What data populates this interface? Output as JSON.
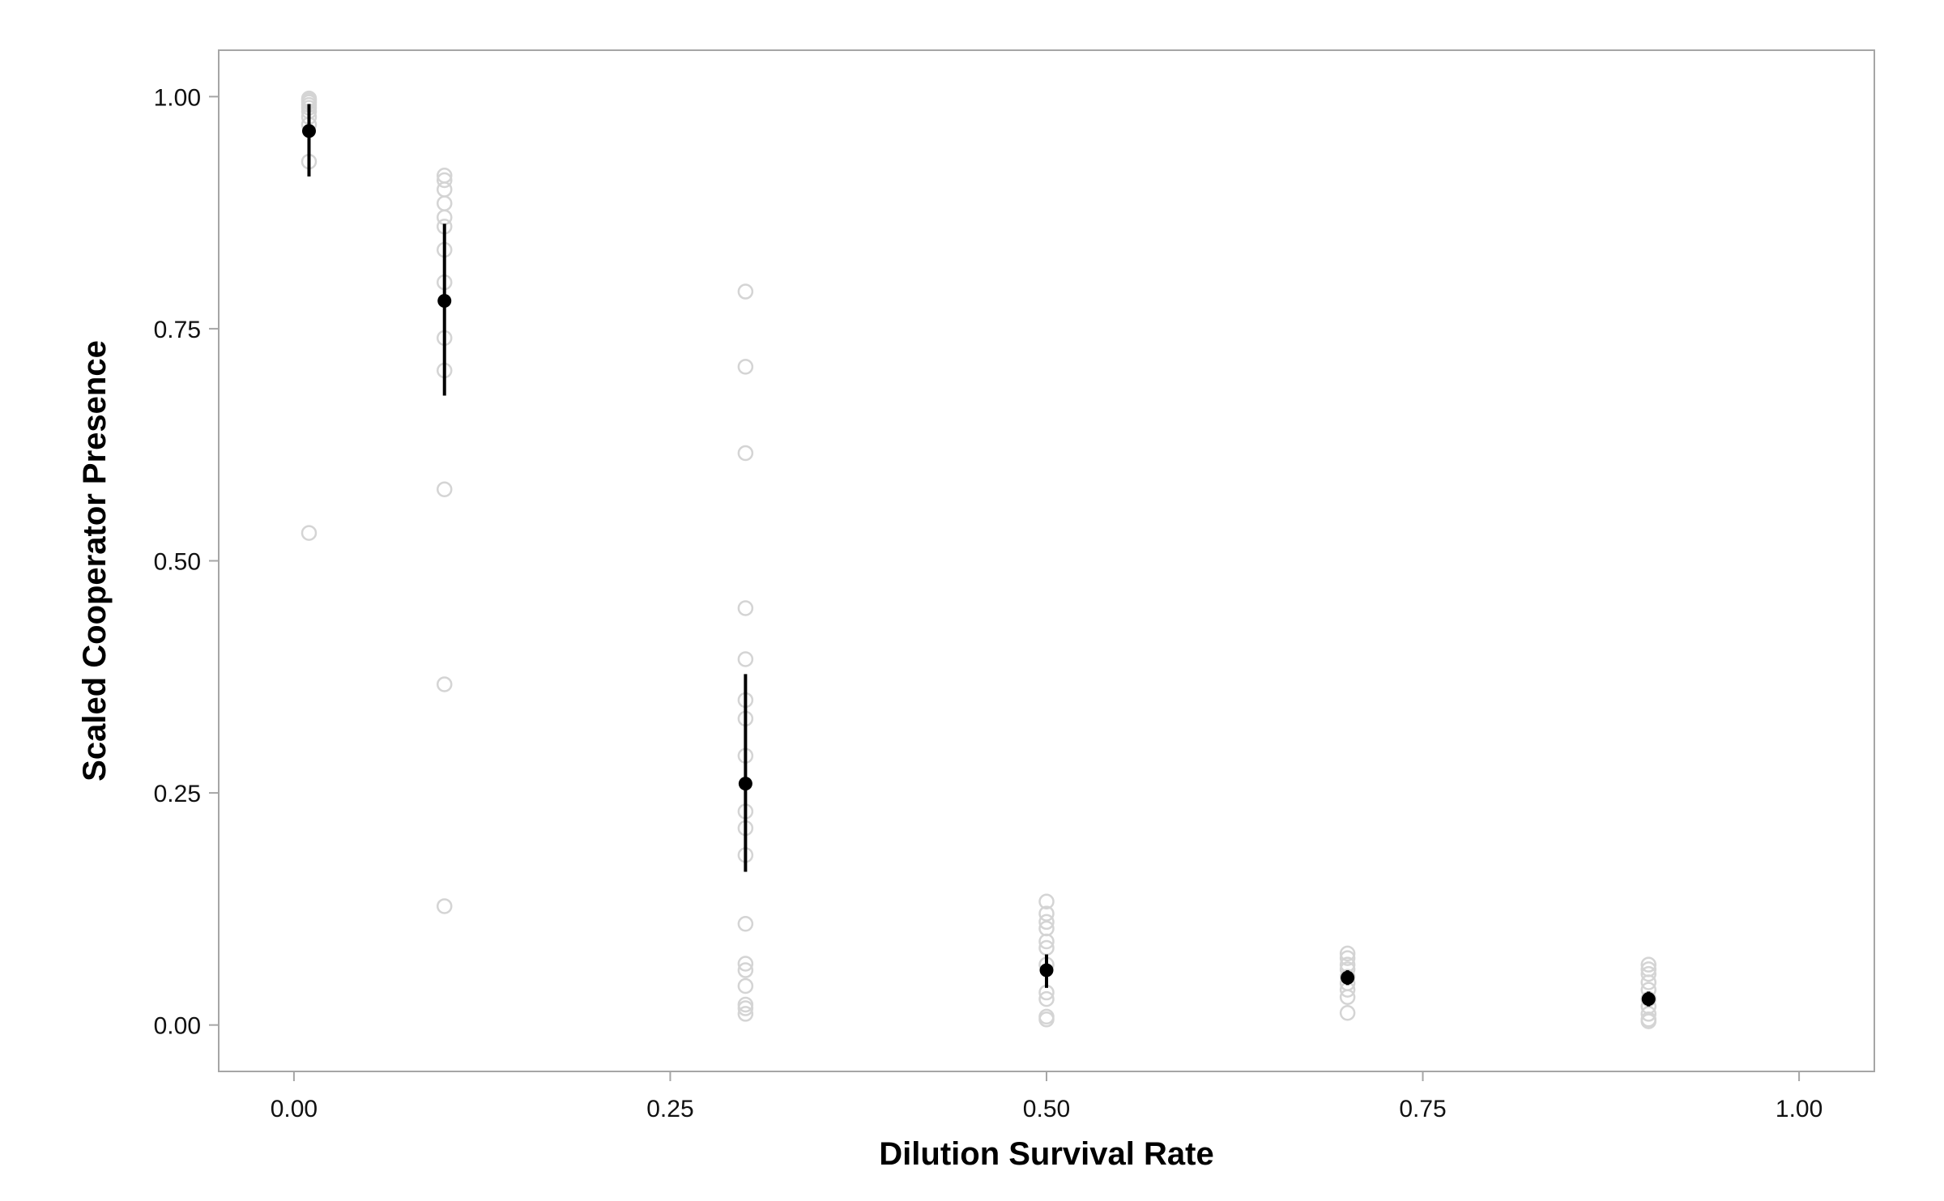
{
  "chart_data": {
    "type": "scatter",
    "title": "",
    "xlabel": "Dilution Survival Rate",
    "ylabel": "Scaled Cooperator Presence",
    "xlim": [
      -0.05,
      1.05
    ],
    "ylim": [
      -0.05,
      1.05
    ],
    "x_ticks": [
      0.0,
      0.25,
      0.5,
      0.75,
      1.0
    ],
    "x_tick_labels": [
      "0.00",
      "0.25",
      "0.50",
      "0.75",
      "1.00"
    ],
    "y_ticks": [
      0.0,
      0.25,
      0.5,
      0.75,
      1.0
    ],
    "y_tick_labels": [
      "0.00",
      "0.25",
      "0.50",
      "0.75",
      "1.00"
    ],
    "grid": false,
    "legend": "none",
    "colors": {
      "replicate_point": "#d4d4d4",
      "mean_point": "#000000",
      "error_bar": "#000000",
      "frame": "#a6a6a6",
      "tick": "#a6a6a6"
    },
    "series": [
      {
        "role": "replicates",
        "marker": "open-circle",
        "points": [
          {
            "x": 0.01,
            "y": 0.998
          },
          {
            "x": 0.01,
            "y": 0.996
          },
          {
            "x": 0.01,
            "y": 0.994
          },
          {
            "x": 0.01,
            "y": 0.991
          },
          {
            "x": 0.01,
            "y": 0.988
          },
          {
            "x": 0.01,
            "y": 0.984
          },
          {
            "x": 0.01,
            "y": 0.978
          },
          {
            "x": 0.01,
            "y": 0.97
          },
          {
            "x": 0.01,
            "y": 0.93
          },
          {
            "x": 0.01,
            "y": 0.53
          },
          {
            "x": 0.1,
            "y": 0.915
          },
          {
            "x": 0.1,
            "y": 0.91
          },
          {
            "x": 0.1,
            "y": 0.9
          },
          {
            "x": 0.1,
            "y": 0.885
          },
          {
            "x": 0.1,
            "y": 0.87
          },
          {
            "x": 0.1,
            "y": 0.86
          },
          {
            "x": 0.1,
            "y": 0.835
          },
          {
            "x": 0.1,
            "y": 0.8
          },
          {
            "x": 0.1,
            "y": 0.74
          },
          {
            "x": 0.1,
            "y": 0.705
          },
          {
            "x": 0.1,
            "y": 0.577
          },
          {
            "x": 0.1,
            "y": 0.367
          },
          {
            "x": 0.1,
            "y": 0.128
          },
          {
            "x": 0.3,
            "y": 0.79
          },
          {
            "x": 0.3,
            "y": 0.709
          },
          {
            "x": 0.3,
            "y": 0.616
          },
          {
            "x": 0.3,
            "y": 0.449
          },
          {
            "x": 0.3,
            "y": 0.394
          },
          {
            "x": 0.3,
            "y": 0.35
          },
          {
            "x": 0.3,
            "y": 0.33
          },
          {
            "x": 0.3,
            "y": 0.29
          },
          {
            "x": 0.3,
            "y": 0.23
          },
          {
            "x": 0.3,
            "y": 0.212
          },
          {
            "x": 0.3,
            "y": 0.183
          },
          {
            "x": 0.3,
            "y": 0.109
          },
          {
            "x": 0.3,
            "y": 0.066
          },
          {
            "x": 0.3,
            "y": 0.059
          },
          {
            "x": 0.3,
            "y": 0.042
          },
          {
            "x": 0.3,
            "y": 0.022
          },
          {
            "x": 0.3,
            "y": 0.018
          },
          {
            "x": 0.3,
            "y": 0.012
          },
          {
            "x": 0.5,
            "y": 0.133
          },
          {
            "x": 0.5,
            "y": 0.12
          },
          {
            "x": 0.5,
            "y": 0.111
          },
          {
            "x": 0.5,
            "y": 0.104
          },
          {
            "x": 0.5,
            "y": 0.09
          },
          {
            "x": 0.5,
            "y": 0.083
          },
          {
            "x": 0.5,
            "y": 0.065
          },
          {
            "x": 0.5,
            "y": 0.035
          },
          {
            "x": 0.5,
            "y": 0.028
          },
          {
            "x": 0.5,
            "y": 0.009
          },
          {
            "x": 0.5,
            "y": 0.006
          },
          {
            "x": 0.7,
            "y": 0.077
          },
          {
            "x": 0.7,
            "y": 0.072
          },
          {
            "x": 0.7,
            "y": 0.065
          },
          {
            "x": 0.7,
            "y": 0.06
          },
          {
            "x": 0.7,
            "y": 0.052
          },
          {
            "x": 0.7,
            "y": 0.045
          },
          {
            "x": 0.7,
            "y": 0.038
          },
          {
            "x": 0.7,
            "y": 0.03
          },
          {
            "x": 0.7,
            "y": 0.013
          },
          {
            "x": 0.9,
            "y": 0.065
          },
          {
            "x": 0.9,
            "y": 0.06
          },
          {
            "x": 0.9,
            "y": 0.055
          },
          {
            "x": 0.9,
            "y": 0.046
          },
          {
            "x": 0.9,
            "y": 0.038
          },
          {
            "x": 0.9,
            "y": 0.028
          },
          {
            "x": 0.9,
            "y": 0.02
          },
          {
            "x": 0.9,
            "y": 0.012
          },
          {
            "x": 0.9,
            "y": 0.006
          },
          {
            "x": 0.9,
            "y": 0.004
          }
        ]
      },
      {
        "role": "means",
        "marker": "filled-circle",
        "points": [
          {
            "x": 0.01,
            "y": 0.963,
            "err_low": 0.914,
            "err_high": 0.992
          },
          {
            "x": 0.1,
            "y": 0.78,
            "err_low": 0.678,
            "err_high": 0.863
          },
          {
            "x": 0.3,
            "y": 0.26,
            "err_low": 0.165,
            "err_high": 0.378
          },
          {
            "x": 0.5,
            "y": 0.059,
            "err_low": 0.04,
            "err_high": 0.076
          },
          {
            "x": 0.7,
            "y": 0.051,
            "err_low": 0.043,
            "err_high": 0.059
          },
          {
            "x": 0.9,
            "y": 0.028,
            "err_low": 0.02,
            "err_high": 0.036
          }
        ]
      }
    ]
  }
}
